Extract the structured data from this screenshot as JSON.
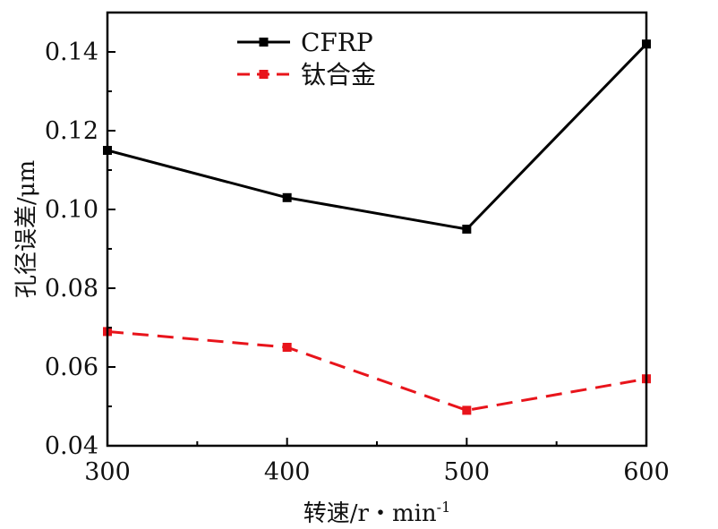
{
  "chart_data": {
    "type": "line",
    "xlabel": "转速/r・min",
    "xlabel_sup": "-1",
    "ylabel": "孔径误差/μm",
    "x": [
      300,
      400,
      500,
      600
    ],
    "xlim": [
      300,
      600
    ],
    "ylim": [
      0.04,
      0.15
    ],
    "xticks": [
      "300",
      "400",
      "500",
      "600"
    ],
    "yticks": [
      "0.04",
      "0.06",
      "0.08",
      "0.10",
      "0.12",
      "0.14"
    ],
    "series": [
      {
        "name": "CFRP",
        "values": [
          0.115,
          0.103,
          0.095,
          0.142
        ],
        "color": "#000000",
        "dash": "solid",
        "marker": "square"
      },
      {
        "name": "钛合金",
        "values": [
          0.069,
          0.065,
          0.049,
          0.057
        ],
        "color": "#e8141b",
        "dash": "dashed",
        "marker": "square"
      }
    ],
    "legend_position": "top-left",
    "grid": false
  }
}
